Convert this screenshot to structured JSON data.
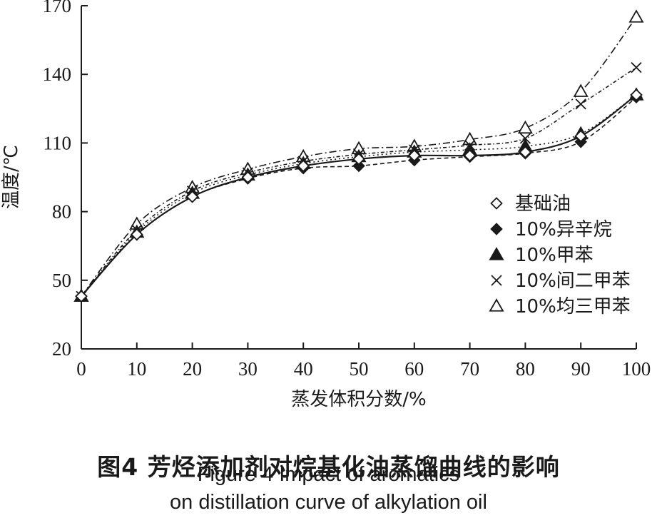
{
  "caption": {
    "cn": "图4    芳烃添加剂对烷基化油蒸馏曲线的影响",
    "en_line1": "Figure 4    Impact of aromatics",
    "en_line2": "on distillation curve of alkylation oil"
  },
  "chart_data": {
    "type": "line",
    "xlabel": "蒸发体积分数/%",
    "ylabel": "温度/℃",
    "xlim": [
      0,
      100
    ],
    "ylim": [
      20,
      170
    ],
    "x_ticks": [
      0,
      10,
      20,
      30,
      40,
      50,
      60,
      70,
      80,
      90,
      100
    ],
    "y_ticks": [
      20,
      50,
      80,
      110,
      140,
      170
    ],
    "x": [
      0,
      10,
      20,
      30,
      40,
      50,
      60,
      70,
      80,
      90,
      100
    ],
    "legend_position": "center-right",
    "series": [
      {
        "name": "基础油",
        "marker": "diamond-open",
        "dash": "solid",
        "values": [
          43,
          70,
          86.5,
          95,
          100,
          103,
          104.5,
          104.5,
          106,
          113,
          131
        ]
      },
      {
        "name": "10%异辛烷",
        "marker": "diamond-filled",
        "dash": "dash",
        "values": [
          43,
          70,
          86.5,
          94.5,
          99,
          100,
          102.5,
          104,
          105.5,
          110.5,
          130
        ]
      },
      {
        "name": "10%甲苯",
        "marker": "triangle-filled",
        "dash": "dot",
        "values": [
          43,
          71,
          88,
          96,
          101,
          104,
          106,
          107,
          108.5,
          114,
          131
        ]
      },
      {
        "name": "10%间二甲苯",
        "marker": "cross",
        "dash": "dash-dot-short",
        "values": [
          43,
          72,
          89,
          97,
          102,
          105,
          107,
          109,
          112,
          127,
          143
        ]
      },
      {
        "name": "10%均三甲苯",
        "marker": "triangle-open",
        "dash": "dash-dot",
        "values": [
          43,
          74.5,
          90.5,
          98.5,
          104,
          107.5,
          108.5,
          111.5,
          116.5,
          132.5,
          165
        ]
      }
    ]
  }
}
